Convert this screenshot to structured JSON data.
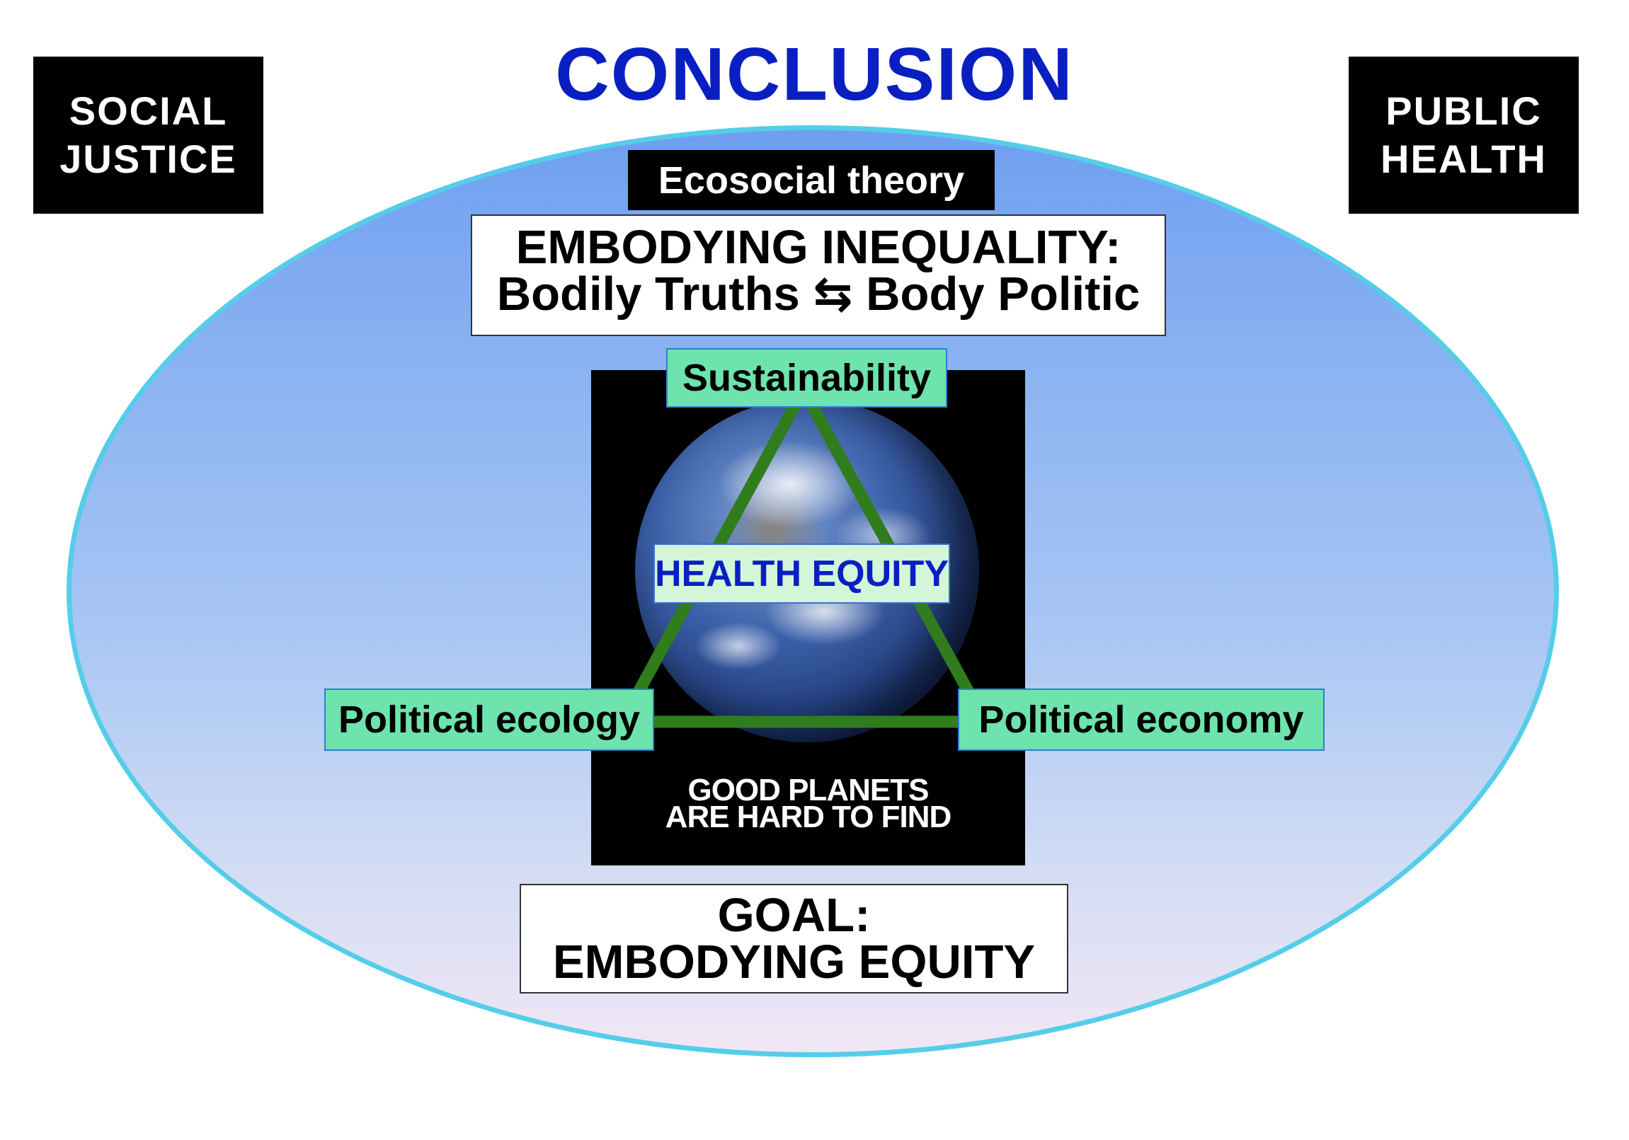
{
  "title": "CONCLUSION",
  "corners": {
    "left": {
      "line1": "SOCIAL",
      "line2": "JUSTICE"
    },
    "right": {
      "line1": "PUBLIC",
      "line2": "HEALTH"
    }
  },
  "theory_label": "Ecosocial theory",
  "embodying": {
    "line1": "EMBODYING INEQUALITY:",
    "line2": "Bodily Truths ⇆ Body Politic"
  },
  "triangle": {
    "top": "Sustainability",
    "left": "Political ecology",
    "right": "Political economy",
    "center": "HEALTH EQUITY",
    "line_color": "#2f7d1c"
  },
  "poster": {
    "caption_line1": "GOOD PLANETS",
    "caption_line2": "ARE HARD TO FIND"
  },
  "goal": {
    "line1": "GOAL:",
    "line2": "EMBODYING EQUITY"
  },
  "colors": {
    "title": "#0a1fc2",
    "ellipse_border": "#55cde9",
    "green_box": "#6ee3ad"
  }
}
